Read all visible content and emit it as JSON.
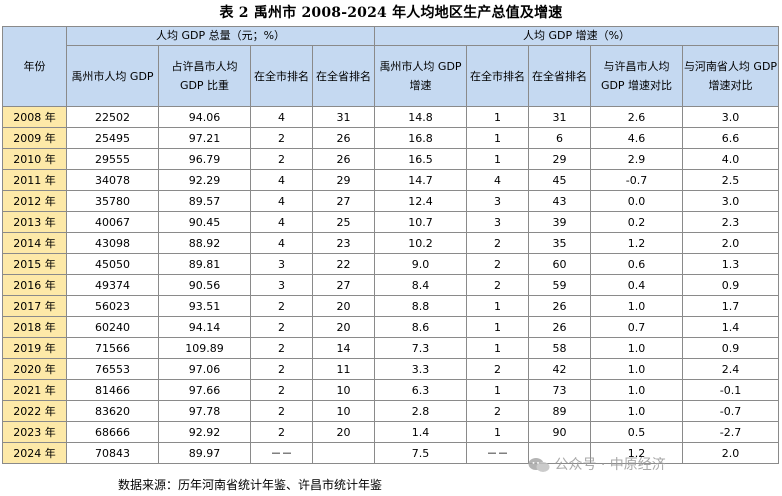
{
  "title": "表 2  禹州市 2008-2024 年人均地区生产总值及增速",
  "header": {
    "year_label": "年份",
    "group1": "人均 GDP 总量（元；%）",
    "group2": "人均 GDP 增速（%）",
    "columns": [
      "禹州市人均 GDP",
      "占许昌市人均 GDP 比重",
      "在全市排名",
      "在全省排名",
      "禹州市人均 GDP 增速",
      "在全市排名",
      "在全省排名",
      "与许昌市人均 GDP 增速对比",
      "与河南省人均 GDP 增速对比"
    ]
  },
  "rows": [
    [
      "2008 年",
      "22502",
      "94.06",
      "4",
      "31",
      "14.8",
      "1",
      "31",
      "2.6",
      "3.0"
    ],
    [
      "2009 年",
      "25495",
      "97.21",
      "2",
      "26",
      "16.8",
      "1",
      "6",
      "4.6",
      "6.6"
    ],
    [
      "2010 年",
      "29555",
      "96.79",
      "2",
      "26",
      "16.5",
      "1",
      "29",
      "2.9",
      "4.0"
    ],
    [
      "2011 年",
      "34078",
      "92.29",
      "4",
      "29",
      "14.7",
      "4",
      "45",
      "-0.7",
      "2.5"
    ],
    [
      "2012 年",
      "35780",
      "89.57",
      "4",
      "27",
      "12.4",
      "3",
      "43",
      "0.0",
      "3.0"
    ],
    [
      "2013 年",
      "40067",
      "90.45",
      "4",
      "25",
      "10.7",
      "3",
      "39",
      "0.2",
      "2.3"
    ],
    [
      "2014 年",
      "43098",
      "88.92",
      "4",
      "23",
      "10.2",
      "2",
      "35",
      "1.2",
      "2.0"
    ],
    [
      "2015 年",
      "45050",
      "89.81",
      "3",
      "22",
      "9.0",
      "2",
      "60",
      "0.6",
      "1.3"
    ],
    [
      "2016 年",
      "49374",
      "90.56",
      "3",
      "27",
      "8.4",
      "2",
      "59",
      "0.4",
      "0.9"
    ],
    [
      "2017 年",
      "56023",
      "93.51",
      "2",
      "20",
      "8.8",
      "1",
      "26",
      "1.0",
      "1.7"
    ],
    [
      "2018 年",
      "60240",
      "94.14",
      "2",
      "20",
      "8.6",
      "1",
      "26",
      "0.7",
      "1.4"
    ],
    [
      "2019 年",
      "71566",
      "109.89",
      "2",
      "14",
      "7.3",
      "1",
      "58",
      "1.0",
      "0.9"
    ],
    [
      "2020 年",
      "76553",
      "97.06",
      "2",
      "11",
      "3.3",
      "2",
      "42",
      "1.0",
      "2.4"
    ],
    [
      "2021 年",
      "81466",
      "97.66",
      "2",
      "10",
      "6.3",
      "1",
      "73",
      "1.0",
      "-0.1"
    ],
    [
      "2022 年",
      "83620",
      "97.78",
      "2",
      "10",
      "2.8",
      "2",
      "89",
      "1.0",
      "-0.7"
    ],
    [
      "2023 年",
      "68666",
      "92.92",
      "2",
      "20",
      "1.4",
      "1",
      "90",
      "0.5",
      "-2.7"
    ],
    [
      "2024 年",
      "70843",
      "89.97",
      "－－",
      "",
      "7.5",
      "－－",
      "",
      "1.2",
      "2.0"
    ]
  ],
  "source": "数据来源：历年河南省统计年鉴、许昌市统计年鉴",
  "watermark": "公众号 · 中原经济",
  "colors": {
    "header_bg": "#c5d9f1",
    "year_bg": "#fde9a8",
    "border": "#8a8a8a"
  }
}
